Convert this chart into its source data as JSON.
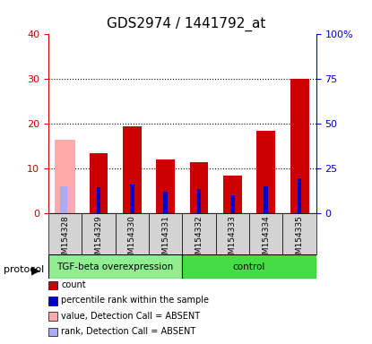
{
  "title": "GDS2974 / 1441792_at",
  "samples": [
    "GSM154328",
    "GSM154329",
    "GSM154330",
    "GSM154331",
    "GSM154332",
    "GSM154333",
    "GSM154334",
    "GSM154335"
  ],
  "count_values": [
    16.5,
    13.5,
    19.5,
    12.0,
    11.5,
    8.5,
    18.5,
    30.0
  ],
  "rank_values": [
    15.0,
    14.5,
    16.0,
    12.0,
    13.5,
    10.0,
    15.0,
    19.5
  ],
  "absent_flags": [
    true,
    false,
    false,
    false,
    false,
    false,
    false,
    false
  ],
  "ylim_left": [
    0,
    40
  ],
  "ylim_right": [
    0,
    100
  ],
  "yticks_left": [
    0,
    10,
    20,
    30,
    40
  ],
  "yticks_right": [
    0,
    25,
    50,
    75,
    100
  ],
  "ytick_labels_left": [
    "0",
    "10",
    "20",
    "30",
    "40"
  ],
  "ytick_labels_right": [
    "0",
    "25",
    "50",
    "75",
    "100%"
  ],
  "color_red": "#cc0000",
  "color_pink": "#ffaaaa",
  "color_blue": "#0000cc",
  "color_light_blue": "#aaaaff",
  "color_bg_plot": "#ffffff",
  "color_gray_cell": "#d3d3d3",
  "color_green_tgf": "#90ee90",
  "color_green_ctrl": "#00cc00",
  "protocol_groups": [
    {
      "label": "TGF-beta overexpression",
      "indices": [
        0,
        1,
        2,
        3
      ],
      "color": "#90ee90"
    },
    {
      "label": "control",
      "indices": [
        4,
        5,
        6,
        7
      ],
      "color": "#44dd44"
    }
  ],
  "left_axis_color": "#cc0000",
  "right_axis_color": "#0000cc",
  "bar_width": 0.35
}
